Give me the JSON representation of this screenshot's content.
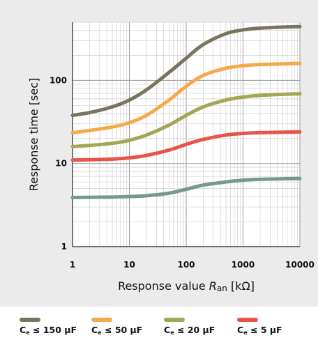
{
  "chart_data": {
    "type": "line",
    "xlabel_prefix": "Response value ",
    "xlabel_var": "R",
    "xlabel_sub": "an",
    "xlabel_unit": " [kΩ]",
    "ylabel": "Response time [sec]",
    "x_scale": "log",
    "y_scale": "log",
    "xlim": [
      1,
      10000
    ],
    "ylim": [
      1,
      500
    ],
    "x_ticks": [
      {
        "value": 1,
        "label": "1"
      },
      {
        "value": 10,
        "label": "10"
      },
      {
        "value": 100,
        "label": "100"
      },
      {
        "value": 1000,
        "label": "1000"
      },
      {
        "value": 10000,
        "label": "10000"
      }
    ],
    "y_ticks": [
      {
        "value": 1,
        "label": "1"
      },
      {
        "value": 10,
        "label": "10"
      },
      {
        "value": 100,
        "label": "100"
      }
    ],
    "grid": true,
    "legend_position": "bottom",
    "x": [
      1,
      2,
      5,
      10,
      20,
      50,
      100,
      200,
      500,
      1000,
      2000,
      5000,
      10000
    ],
    "series": [
      {
        "name": "150 µF",
        "color": "#7a735f",
        "values": [
          38,
          41,
          48,
          58,
          77,
          125,
          185,
          270,
          365,
          405,
          425,
          438,
          443
        ]
      },
      {
        "name": "50 µF",
        "color": "#f6a94a",
        "values": [
          23.5,
          25,
          27.5,
          31,
          38,
          58,
          85,
          115,
          140,
          150,
          155,
          158,
          160
        ]
      },
      {
        "name": "20 µF",
        "color": "#a3a653",
        "values": [
          16,
          16.5,
          17.5,
          19,
          22,
          29,
          38,
          48,
          58,
          63,
          66,
          68,
          69
        ]
      },
      {
        "name": "5 µF",
        "color": "#e9544a",
        "values": [
          11,
          11.1,
          11.3,
          11.7,
          12.5,
          14.5,
          17,
          19.5,
          22,
          23,
          23.5,
          23.8,
          24
        ]
      },
      {
        "name": "",
        "color": "#75998f",
        "values": [
          3.9,
          3.92,
          3.95,
          4.0,
          4.1,
          4.4,
          4.9,
          5.5,
          6.0,
          6.3,
          6.45,
          6.55,
          6.6
        ]
      }
    ]
  },
  "legend": [
    {
      "var": "C",
      "sub": "e",
      "rel": " ≤ ",
      "value": "150 µF",
      "color": "#7a735f"
    },
    {
      "var": "C",
      "sub": "e",
      "rel": " ≤ ",
      "value": "50 µF",
      "color": "#f6a94a"
    },
    {
      "var": "C",
      "sub": "e",
      "rel": " ≤ ",
      "value": "20 µF",
      "color": "#a3a653"
    },
    {
      "var": "C",
      "sub": "e",
      "rel": " ≤ ",
      "value": "5 µF",
      "color": "#e9544a"
    }
  ]
}
